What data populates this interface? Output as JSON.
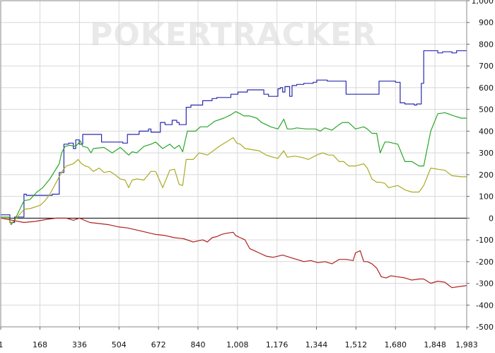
{
  "watermark": "POKERTRACKER",
  "chart_data": {
    "type": "line",
    "title": "",
    "xlabel": "",
    "ylabel": "",
    "xlim": [
      1,
      1983
    ],
    "ylim": [
      -500,
      1000
    ],
    "grid": true,
    "y_axis_side": "right",
    "x_ticks": [
      1,
      168,
      336,
      504,
      672,
      840,
      1008,
      1176,
      1344,
      1512,
      1680,
      1848,
      1983
    ],
    "x_tick_labels": [
      "1",
      "168",
      "336",
      "504",
      "672",
      "840",
      "1,008",
      "1,176",
      "1,344",
      "1,512",
      "1,680",
      "1,848",
      "1,983"
    ],
    "y_ticks": [
      -500,
      -400,
      -300,
      -200,
      -100,
      0,
      100,
      200,
      300,
      400,
      500,
      600,
      700,
      800,
      900,
      1000
    ],
    "y_tick_labels": [
      "-500",
      "-400",
      "-300",
      "-200",
      "-100",
      "0",
      "100",
      "200",
      "300",
      "400",
      "500",
      "600",
      "700",
      "800",
      "900",
      "1,000"
    ],
    "series": [
      {
        "color": "#2a2ab0",
        "step": true,
        "x": [
          1,
          30,
          40,
          60,
          100,
          110,
          220,
          250,
          270,
          290,
          310,
          320,
          335,
          350,
          400,
          430,
          520,
          540,
          590,
          630,
          640,
          680,
          700,
          730,
          750,
          760,
          790,
          810,
          850,
          860,
          900,
          920,
          980,
          1010,
          1050,
          1120,
          1140,
          1180,
          1190,
          1200,
          1210,
          1230,
          1240,
          1260,
          1290,
          1330,
          1345,
          1390,
          1415,
          1430,
          1470,
          1530,
          1560,
          1600,
          1610,
          1680,
          1700,
          1720,
          1760,
          1770,
          1790,
          1800,
          1840,
          1860,
          1880,
          1920,
          1940,
          1983
        ],
        "y": [
          15,
          15,
          -20,
          5,
          110,
          105,
          110,
          210,
          340,
          345,
          320,
          360,
          340,
          385,
          385,
          350,
          345,
          385,
          400,
          410,
          395,
          440,
          430,
          450,
          440,
          430,
          510,
          520,
          520,
          540,
          550,
          555,
          570,
          580,
          590,
          570,
          560,
          595,
          600,
          580,
          605,
          560,
          610,
          615,
          620,
          625,
          635,
          630,
          630,
          630,
          570,
          570,
          570,
          570,
          630,
          625,
          530,
          525,
          520,
          525,
          620,
          770,
          770,
          760,
          765,
          760,
          770,
          770
        ]
      },
      {
        "color": "#2aa52a",
        "step": false,
        "x": [
          1,
          35,
          45,
          60,
          100,
          125,
          155,
          180,
          210,
          250,
          260,
          275,
          295,
          320,
          340,
          350,
          370,
          385,
          395,
          440,
          475,
          510,
          545,
          560,
          580,
          610,
          640,
          660,
          690,
          720,
          740,
          760,
          775,
          795,
          830,
          850,
          880,
          910,
          950,
          980,
          1000,
          1020,
          1035,
          1060,
          1090,
          1110,
          1150,
          1180,
          1205,
          1220,
          1240,
          1260,
          1300,
          1340,
          1360,
          1380,
          1410,
          1440,
          1455,
          1480,
          1510,
          1545,
          1560,
          1580,
          1600,
          1615,
          1635,
          1650,
          1690,
          1720,
          1750,
          1780,
          1790,
          1800,
          1830,
          1860,
          1890,
          1930,
          1960,
          1983
        ],
        "y": [
          5,
          5,
          -30,
          -10,
          80,
          85,
          120,
          140,
          180,
          250,
          300,
          330,
          335,
          330,
          355,
          330,
          325,
          300,
          320,
          325,
          300,
          325,
          290,
          305,
          300,
          330,
          340,
          350,
          320,
          340,
          320,
          335,
          305,
          400,
          400,
          420,
          420,
          445,
          460,
          475,
          490,
          480,
          470,
          470,
          460,
          440,
          420,
          410,
          455,
          410,
          410,
          415,
          410,
          410,
          400,
          415,
          405,
          430,
          440,
          440,
          410,
          420,
          410,
          390,
          390,
          300,
          350,
          350,
          340,
          260,
          260,
          240,
          240,
          240,
          400,
          480,
          485,
          470,
          460,
          460
        ]
      },
      {
        "color": "#aaaa22",
        "step": false,
        "x": [
          1,
          35,
          45,
          60,
          100,
          130,
          170,
          190,
          210,
          250,
          265,
          280,
          310,
          330,
          345,
          360,
          375,
          395,
          420,
          440,
          465,
          480,
          510,
          530,
          545,
          560,
          580,
          610,
          640,
          660,
          690,
          720,
          740,
          760,
          775,
          790,
          820,
          845,
          880,
          905,
          930,
          960,
          990,
          1005,
          1020,
          1040,
          1070,
          1100,
          1130,
          1160,
          1180,
          1205,
          1220,
          1250,
          1280,
          1310,
          1345,
          1370,
          1395,
          1415,
          1440,
          1460,
          1480,
          1510,
          1545,
          1560,
          1580,
          1600,
          1615,
          1635,
          1650,
          1690,
          1720,
          1750,
          1780,
          1800,
          1830,
          1860,
          1890,
          1920,
          1960,
          1983
        ],
        "y": [
          0,
          0,
          -25,
          -10,
          40,
          45,
          60,
          80,
          110,
          190,
          220,
          240,
          250,
          270,
          250,
          240,
          235,
          215,
          230,
          210,
          215,
          205,
          180,
          175,
          140,
          175,
          180,
          175,
          215,
          215,
          140,
          220,
          225,
          155,
          150,
          270,
          270,
          300,
          290,
          310,
          330,
          350,
          370,
          345,
          340,
          320,
          315,
          310,
          290,
          280,
          275,
          310,
          280,
          285,
          280,
          270,
          290,
          300,
          290,
          290,
          260,
          260,
          240,
          240,
          250,
          230,
          180,
          165,
          165,
          160,
          140,
          150,
          130,
          120,
          120,
          150,
          230,
          225,
          220,
          195,
          190,
          190
        ]
      },
      {
        "color": "#b02020",
        "step": false,
        "x": [
          1,
          100,
          150,
          200,
          240,
          280,
          310,
          336,
          380,
          420,
          460,
          500,
          540,
          580,
          620,
          660,
          700,
          740,
          780,
          820,
          860,
          880,
          900,
          920,
          940,
          960,
          990,
          1000,
          1020,
          1040,
          1060,
          1080,
          1100,
          1130,
          1160,
          1200,
          1230,
          1260,
          1290,
          1320,
          1350,
          1380,
          1410,
          1440,
          1470,
          1500,
          1510,
          1530,
          1545,
          1560,
          1580,
          1600,
          1620,
          1640,
          1660,
          1690,
          1720,
          1750,
          1780,
          1800,
          1830,
          1860,
          1890,
          1920,
          1950,
          1983
        ],
        "y": [
          0,
          -20,
          -15,
          -5,
          0,
          0,
          -10,
          0,
          -20,
          -25,
          -30,
          -40,
          -45,
          -55,
          -65,
          -75,
          -80,
          -90,
          -95,
          -110,
          -100,
          -110,
          -90,
          -85,
          -75,
          -70,
          -65,
          -80,
          -90,
          -100,
          -140,
          -150,
          -160,
          -175,
          -180,
          -170,
          -180,
          -190,
          -200,
          -195,
          -205,
          -200,
          -210,
          -190,
          -190,
          -195,
          -160,
          -150,
          -200,
          -200,
          -210,
          -230,
          -270,
          -275,
          -265,
          -270,
          -275,
          -285,
          -280,
          -280,
          -300,
          -290,
          -295,
          -320,
          -315,
          -310
        ]
      }
    ]
  }
}
